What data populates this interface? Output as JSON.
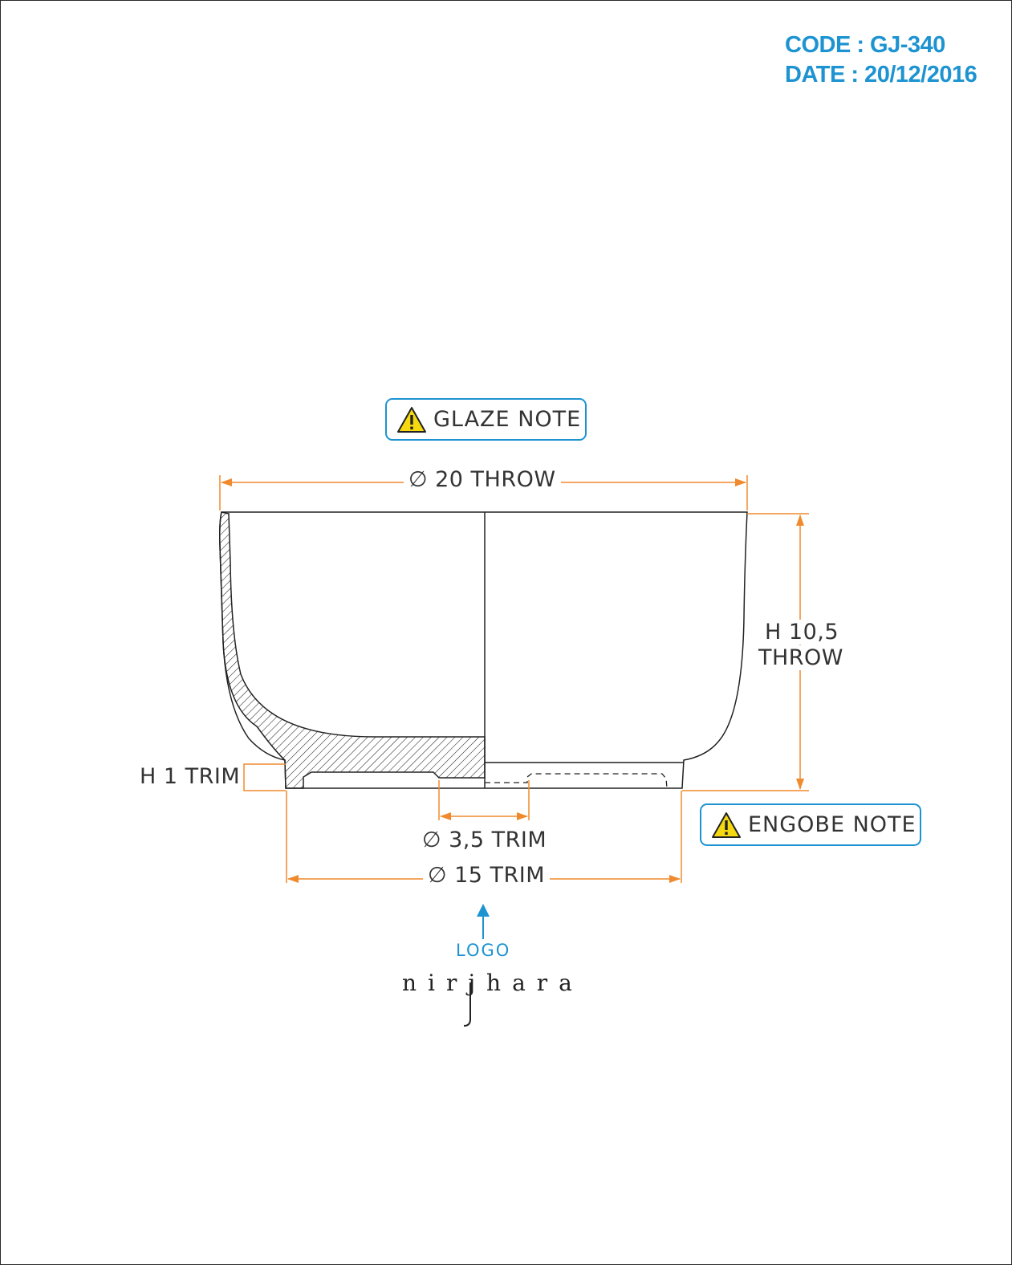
{
  "header": {
    "code": "CODE : GJ-340",
    "date": "DATE : 20/12/2016"
  },
  "notes": {
    "glaze": "GLAZE NOTE",
    "engobe": "ENGOBE NOTE"
  },
  "dimensions": {
    "throw_diameter": "∅ 20 THROW",
    "height_line1": "H 10,5",
    "height_line2": "THROW",
    "foot_height": "H 1 TRIM",
    "inner_foot_diameter": "∅ 3,5 TRIM",
    "foot_diameter": "∅ 15 TRIM"
  },
  "logo": {
    "label": "LOGO",
    "brand": "nirjhara"
  },
  "colors": {
    "accent": "#1d93d1",
    "dimension": "#f08a2c",
    "line": "#222222",
    "warning": "#f5d80f"
  }
}
